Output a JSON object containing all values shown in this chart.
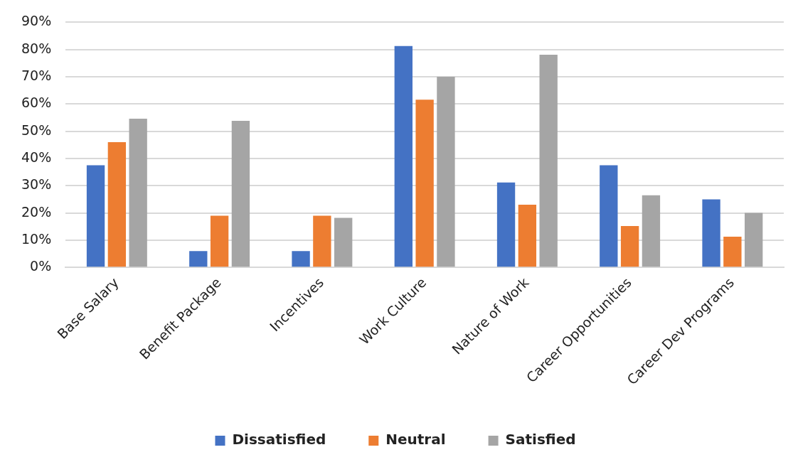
{
  "chart_data": {
    "type": "bar",
    "categories": [
      "Base Salary",
      "Benefit Package",
      "Incentives",
      "Work Culture",
      "Nature of Work",
      "Career Opportunities",
      "Career Dev Programs"
    ],
    "series": [
      {
        "name": "Dissatisfied",
        "color": "#4472c4",
        "values": [
          37.5,
          6,
          6,
          81.3,
          31.2,
          37.5,
          25
        ]
      },
      {
        "name": "Neutral",
        "color": "#ed7d31",
        "values": [
          46,
          19,
          19,
          61.6,
          23,
          15.2,
          11.3
        ]
      },
      {
        "name": "Satisfied",
        "color": "#a5a5a5",
        "values": [
          54.6,
          53.8,
          18.2,
          70,
          78.1,
          26.5,
          20
        ]
      }
    ],
    "ylim": [
      0,
      90
    ],
    "yticks": [
      {
        "value": 0,
        "label": "0%"
      },
      {
        "value": 10,
        "label": "10%"
      },
      {
        "value": 20,
        "label": "20%"
      },
      {
        "value": 30,
        "label": "30%"
      },
      {
        "value": 40,
        "label": "40%"
      },
      {
        "value": 50,
        "label": "50%"
      },
      {
        "value": 60,
        "label": "60%"
      },
      {
        "value": 70,
        "label": "70%"
      },
      {
        "value": 80,
        "label": "80%"
      },
      {
        "value": 90,
        "label": "90%"
      }
    ],
    "grid": "y",
    "legend": "bottom"
  }
}
